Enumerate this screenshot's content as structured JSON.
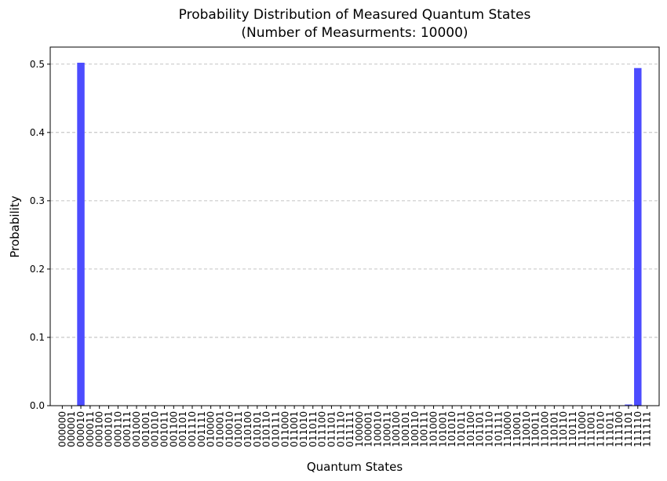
{
  "chart_data": {
    "type": "bar",
    "title_line1": "Probability Distribution of Measured Quantum States",
    "title_line2": "(Number of Measurments: 10000)",
    "xlabel": "Quantum States",
    "ylabel": "Probability",
    "ylim": [
      0,
      0.525
    ],
    "yticks": [
      "0.0",
      "0.1",
      "0.2",
      "0.3",
      "0.4",
      "0.5"
    ],
    "grid": "y-dashed",
    "bar_color": "#4c4cff",
    "categories": [
      "000000",
      "000001",
      "000010",
      "000011",
      "000100",
      "000101",
      "000110",
      "000111",
      "001000",
      "001001",
      "001010",
      "001011",
      "001100",
      "001101",
      "001110",
      "001111",
      "010000",
      "010001",
      "010010",
      "010011",
      "010100",
      "010101",
      "010110",
      "010111",
      "011000",
      "011001",
      "011010",
      "011011",
      "011100",
      "011101",
      "011110",
      "011111",
      "100000",
      "100001",
      "100010",
      "100011",
      "100100",
      "100101",
      "100110",
      "100111",
      "101000",
      "101001",
      "101010",
      "101011",
      "101100",
      "101101",
      "101110",
      "101111",
      "110000",
      "110001",
      "110010",
      "110011",
      "110100",
      "110101",
      "110110",
      "110111",
      "111000",
      "111001",
      "111010",
      "111011",
      "111100",
      "111101",
      "111110",
      "111111"
    ],
    "values": [
      0,
      0,
      0.5021,
      0,
      0,
      0,
      0,
      0,
      0,
      0,
      0,
      0,
      0,
      0,
      0,
      0,
      0,
      0,
      0,
      0,
      0,
      0,
      0,
      0,
      0,
      0,
      0,
      0,
      0,
      0,
      0,
      0,
      0,
      0,
      0,
      0,
      0,
      0,
      0,
      0,
      0,
      0,
      0,
      0,
      0,
      0,
      0,
      0,
      0,
      0,
      0,
      0,
      0,
      0,
      0,
      0,
      0,
      0,
      0,
      0,
      0,
      0.0017,
      0.4943,
      0
    ]
  }
}
